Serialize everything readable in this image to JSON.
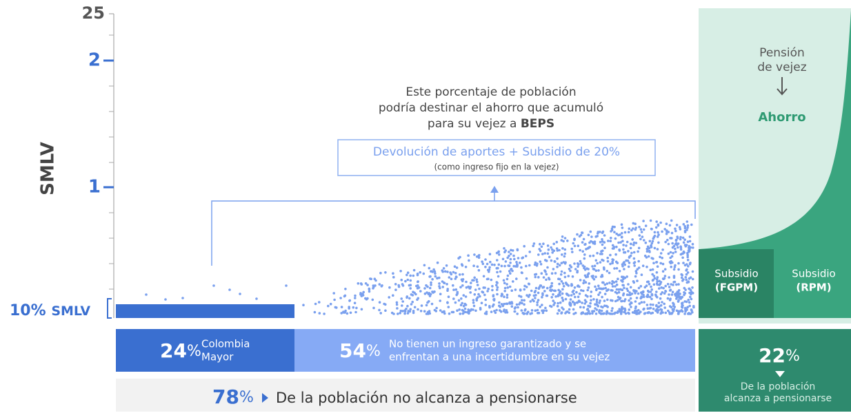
{
  "axis": {
    "label": "SMLV",
    "top": "25",
    "ticks": [
      "2",
      "1"
    ],
    "base": {
      "value": "10%",
      "unit": "SMLV"
    }
  },
  "annotation": {
    "lines": [
      "Este porcentaje de población",
      "podría destinar el ahorro que acumuló",
      "para su vejez a "
    ],
    "bold": "BEPS",
    "box_title": "Devolución de aportes + Subsidio de 20%",
    "box_note": "(como ingreso fijo en la vejez)"
  },
  "right_panel": {
    "pension": [
      "Pensión",
      "de vejez"
    ],
    "ahorro": "Ahorro",
    "subsidies": [
      {
        "label": "Subsidio",
        "name": "(FGPM)"
      },
      {
        "label": "Subsidio",
        "name": "(RPM)"
      }
    ]
  },
  "segments": [
    {
      "value": "24",
      "unit": "%",
      "text": [
        "Colombia",
        "Mayor"
      ]
    },
    {
      "value": "54",
      "unit": "%",
      "text": [
        "No tienen un ingreso garantizado y se",
        "enfrentan a una incertidumbre en su vejez"
      ]
    }
  ],
  "total": {
    "value": "78",
    "unit": "%",
    "text": "De la población no alcanza a pensionarse"
  },
  "pensioned": {
    "value": "22",
    "unit": "%",
    "text": [
      "De la población",
      "alcanza a pensionarse"
    ]
  }
}
